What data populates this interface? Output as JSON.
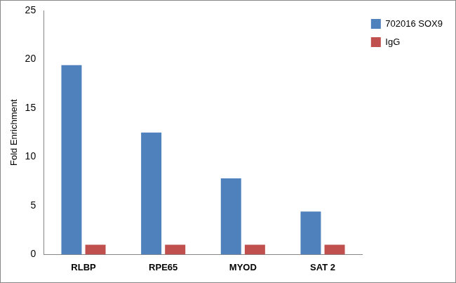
{
  "chart_data": {
    "type": "bar",
    "y_label": "Fold Enrichment",
    "categories": [
      "RLBP",
      "RPE65",
      "MYOD",
      "SAT 2"
    ],
    "series": [
      {
        "name": "702016 SOX9",
        "color": "#4f81bd",
        "values": [
          19.4,
          12.5,
          7.8,
          4.4
        ]
      },
      {
        "name": "IgG",
        "color": "#c0504d",
        "values": [
          1,
          1,
          1,
          1
        ]
      }
    ],
    "ylim": [
      0,
      25
    ],
    "yticks": [
      0,
      5,
      10,
      15,
      20,
      25
    ],
    "grid": false,
    "legend": "upper right"
  }
}
